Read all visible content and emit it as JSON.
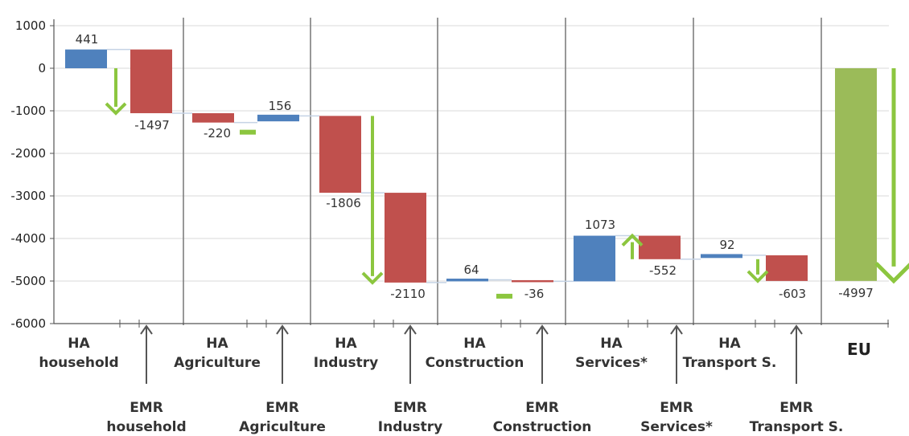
{
  "chart_data": {
    "type": "bar",
    "subtype": "waterfall",
    "title": "",
    "xlabel": "",
    "ylabel": "",
    "ylim": [
      -6000,
      1000
    ],
    "yticks": [
      1000,
      0,
      -1000,
      -2000,
      -3000,
      -4000,
      -5000,
      -6000
    ],
    "grid": true,
    "colors": {
      "HA": "#4f81bd",
      "EMR": "#c0504d",
      "EU": "#9bbb59",
      "arrow": "#8cc63f",
      "connector": "#c5d3e5",
      "divider": "#7f7f7f"
    },
    "bars": [
      {
        "label": "HA household",
        "label_lines": [
          "HA",
          "household"
        ],
        "type": "HA",
        "value": 441,
        "start": 0,
        "end": 441,
        "label_text": "441"
      },
      {
        "label": "EMR household",
        "label_lines": [
          "EMR",
          "household"
        ],
        "type": "EMR",
        "value": -1497,
        "start": 441,
        "end": -1056,
        "label_text": "-1497"
      },
      {
        "label": "HA Agriculture",
        "label_lines": [
          "HA",
          "Agriculture"
        ],
        "type": "EMR",
        "value": -220,
        "start": -1056,
        "end": -1276,
        "label_text": "-220"
      },
      {
        "label": "EMR Agriculture",
        "label_lines": [
          "EMR",
          "Agriculture"
        ],
        "type": "HA",
        "value": 156,
        "start": -1276,
        "end": -1120,
        "label_text": "156"
      },
      {
        "label": "HA Industry",
        "label_lines": [
          "HA",
          "Industry"
        ],
        "type": "EMR",
        "value": -1806,
        "start": -1120,
        "end": -2926,
        "label_text": "-1806"
      },
      {
        "label": "EMR Industry",
        "label_lines": [
          "EMR",
          "Industry"
        ],
        "type": "EMR",
        "value": -2110,
        "start": -2926,
        "end": -5036,
        "label_text": "-2110"
      },
      {
        "label": "HA Construction",
        "label_lines": [
          "HA",
          "Construction"
        ],
        "type": "HA",
        "value": 64,
        "start": -5036,
        "end": -4972,
        "label_text": "64"
      },
      {
        "label": "EMR Construction",
        "label_lines": [
          "EMR",
          "Construction"
        ],
        "type": "EMR",
        "value": -36,
        "start": -4972,
        "end": -5008,
        "label_text": "-36"
      },
      {
        "label": "HA Services*",
        "label_lines": [
          "HA",
          "Services*"
        ],
        "type": "HA",
        "value": 1073,
        "start": -5008,
        "end": -3935,
        "label_text": "1073"
      },
      {
        "label": "EMR Services*",
        "label_lines": [
          "EMR",
          "Services*"
        ],
        "type": "EMR",
        "value": -552,
        "start": -3935,
        "end": -4487,
        "label_text": "-552"
      },
      {
        "label": "HA Transport S.",
        "label_lines": [
          "HA",
          "Transport S."
        ],
        "type": "HA",
        "value": 92,
        "start": -4487,
        "end": -4395,
        "label_text": "92"
      },
      {
        "label": "EMR Transport S.",
        "label_lines": [
          "EMR",
          "Transport S."
        ],
        "type": "EMR",
        "value": -603,
        "start": -4395,
        "end": -4998,
        "label_text": "-603"
      },
      {
        "label": "EU",
        "label_lines": [
          "EU"
        ],
        "type": "EU",
        "value": -4997,
        "start": 0,
        "end": -4997,
        "label_text": "-4997"
      }
    ],
    "net_arrows": [
      {
        "group": "household",
        "from": 0,
        "to": -1056,
        "direction": "down"
      },
      {
        "group": "Agriculture",
        "from": -1276,
        "to": -1276,
        "direction": "flat"
      },
      {
        "group": "Industry",
        "from": -1120,
        "to": -5036,
        "direction": "down"
      },
      {
        "group": "Construction",
        "from": -5130,
        "to": -5130,
        "direction": "flat"
      },
      {
        "group": "Services*",
        "from": -4487,
        "to": -3935,
        "direction": "up"
      },
      {
        "group": "Transport S.",
        "from": -4487,
        "to": -4998,
        "direction": "down"
      },
      {
        "group": "EU",
        "from": 0,
        "to": -4997,
        "direction": "down"
      }
    ]
  }
}
